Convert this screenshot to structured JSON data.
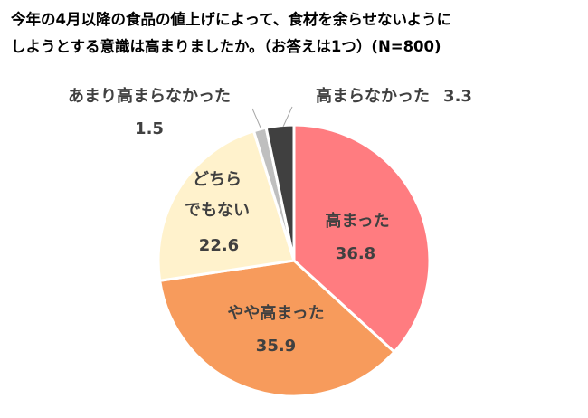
{
  "chart_data": {
    "type": "pie",
    "title": [
      "今年の4月以降の食品の値上げによって、食材を余らせないように",
      "しようとする意識は高まりましたか。（お答えは1つ）(N=800)"
    ],
    "categories": [
      "高まった",
      "やや高まった",
      "どちら\nでもない",
      "あまり高まらなかった",
      "高まらなかった"
    ],
    "values": [
      36.8,
      35.9,
      22.6,
      1.5,
      3.3
    ],
    "colors": [
      "#ff7c80",
      "#f79b5c",
      "#fff2cc",
      "#bfbfbf",
      "#404040"
    ]
  }
}
